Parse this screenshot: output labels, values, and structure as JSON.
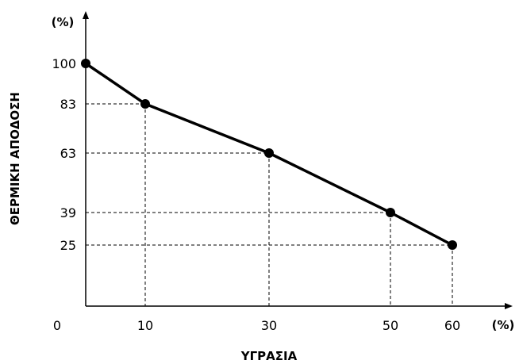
{
  "chart_data": {
    "type": "line",
    "xlabel": "ΥΓΡΑΣΙΑ",
    "ylabel": "ΘΕΡΜΙΚΗ ΑΠΟΔΟΣΗ",
    "x_unit": "(%)",
    "y_unit": "(%)",
    "xlim": [
      0,
      70
    ],
    "ylim": [
      0,
      110
    ],
    "x_ticks": [
      "0",
      "10",
      "30",
      "50",
      "60"
    ],
    "y_ticks": [
      "100",
      "83",
      "63",
      "39",
      "25"
    ],
    "grid": false,
    "series": [
      {
        "x": [
          0,
          10,
          30,
          50,
          60
        ],
        "y": [
          100,
          83,
          63,
          39,
          25
        ]
      }
    ],
    "color": "#000000"
  }
}
